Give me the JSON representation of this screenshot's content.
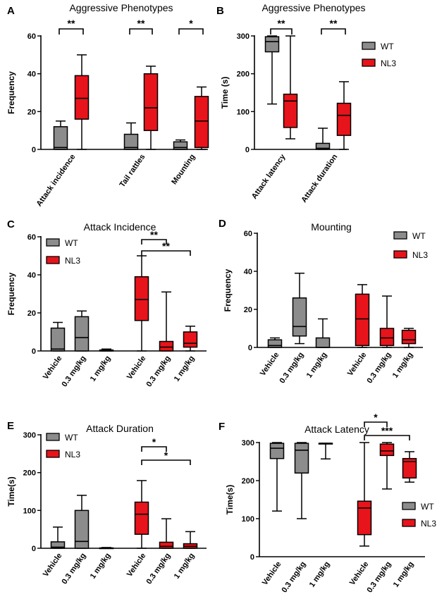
{
  "colors": {
    "WT": "#8c8c8c",
    "NL3": "#e8141b",
    "ink": "#000000"
  },
  "chart_data": [
    {
      "panel": "A",
      "type": "boxplot",
      "title": "Aggressive Phenotypes",
      "ylabel": "Frequency",
      "ylim": [
        0,
        60
      ],
      "yticks": [
        0,
        20,
        40,
        60
      ],
      "categories": [
        "Attack incidence",
        "Tail rattles",
        "Mounting"
      ],
      "legend": [],
      "groups": [
        {
          "category": "Attack incidence",
          "boxes": [
            {
              "series": "WT",
              "min": 0,
              "q1": 0,
              "median": 1,
              "q3": 12,
              "max": 15
            },
            {
              "series": "NL3",
              "min": 0,
              "q1": 16,
              "median": 27,
              "q3": 39,
              "max": 50
            }
          ]
        },
        {
          "category": "Tail rattles",
          "boxes": [
            {
              "series": "WT",
              "min": 0,
              "q1": 0,
              "median": 1,
              "q3": 8,
              "max": 14
            },
            {
              "series": "NL3",
              "min": 0,
              "q1": 10,
              "median": 22,
              "q3": 40,
              "max": 44
            }
          ]
        },
        {
          "category": "Mounting",
          "boxes": [
            {
              "series": "WT",
              "min": 0,
              "q1": 0,
              "median": 1,
              "q3": 4,
              "max": 5
            },
            {
              "series": "NL3",
              "min": 0,
              "q1": 1,
              "median": 15,
              "q3": 28,
              "max": 33
            }
          ]
        }
      ],
      "significance": [
        {
          "from": "Attack incidence WT",
          "to": "Attack incidence NL3",
          "label": "**"
        },
        {
          "from": "Tail rattles WT",
          "to": "Tail rattles NL3",
          "label": "**"
        },
        {
          "from": "Mounting WT",
          "to": "Mounting NL3",
          "label": "*"
        }
      ]
    },
    {
      "panel": "B",
      "type": "boxplot",
      "title": "Aggressive Phenotypes",
      "ylabel": "Time (s)",
      "ylim": [
        0,
        300
      ],
      "yticks": [
        0,
        100,
        200,
        300
      ],
      "categories": [
        "Attack latency",
        "Attack duration"
      ],
      "legend": [
        "WT",
        "NL3"
      ],
      "groups": [
        {
          "category": "Attack latency",
          "boxes": [
            {
              "series": "WT",
              "min": 120,
              "q1": 258,
              "median": 285,
              "q3": 298,
              "max": 300
            },
            {
              "series": "NL3",
              "min": 28,
              "q1": 58,
              "median": 128,
              "q3": 146,
              "max": 300
            }
          ]
        },
        {
          "category": "Attack duration",
          "boxes": [
            {
              "series": "WT",
              "min": 0,
              "q1": 0,
              "median": 3,
              "q3": 16,
              "max": 56
            },
            {
              "series": "NL3",
              "min": 0,
              "q1": 37,
              "median": 90,
              "q3": 122,
              "max": 179
            }
          ]
        }
      ],
      "significance": [
        {
          "from": "Attack latency WT",
          "to": "Attack latency NL3",
          "label": "**"
        },
        {
          "from": "Attack duration WT",
          "to": "Attack duration NL3",
          "label": "**"
        }
      ]
    },
    {
      "panel": "C",
      "type": "boxplot",
      "title": "Attack Incidence",
      "ylabel": "Frequency",
      "ylim": [
        0,
        60
      ],
      "yticks": [
        0,
        20,
        40,
        60
      ],
      "categories": [
        "Vehicle",
        "0.3 mg/kg",
        "1 mg/kg",
        "Vehicle",
        "0.3 mg/kg",
        "1 mg/kg"
      ],
      "legend": [
        "WT",
        "NL3"
      ],
      "boxes": [
        {
          "series": "WT",
          "min": 0,
          "q1": 0,
          "median": 1,
          "q3": 12,
          "max": 15
        },
        {
          "series": "WT",
          "min": 0,
          "q1": 0,
          "median": 7,
          "q3": 18,
          "max": 21
        },
        {
          "series": "WT",
          "min": 0,
          "q1": 0,
          "median": 0,
          "q3": 0.5,
          "max": 1
        },
        {
          "series": "NL3",
          "min": 0,
          "q1": 16,
          "median": 27,
          "q3": 39,
          "max": 50
        },
        {
          "series": "NL3",
          "min": 0,
          "q1": 0,
          "median": 2,
          "q3": 5,
          "max": 31
        },
        {
          "series": "NL3",
          "min": 0,
          "q1": 2,
          "median": 4,
          "q3": 10,
          "max": 13
        }
      ],
      "significance": [
        {
          "from": "NL3 Vehicle",
          "to": "NL3 0.3 mg/kg",
          "label": "**"
        },
        {
          "from": "NL3 Vehicle",
          "to": "NL3 1 mg/kg",
          "label": "**"
        }
      ]
    },
    {
      "panel": "D",
      "type": "boxplot",
      "title": "Mounting",
      "ylabel": "Frequency",
      "ylim": [
        0,
        60
      ],
      "yticks": [
        0,
        20,
        40,
        60
      ],
      "categories": [
        "Vehicle",
        "0.3 mg/kg",
        "1 mg/kg",
        "Vehicle",
        "0.3 mg/kg",
        "1 mg/kg"
      ],
      "legend": [
        "WT",
        "NL3"
      ],
      "boxes": [
        {
          "series": "WT",
          "min": 0,
          "q1": 0,
          "median": 1,
          "q3": 4,
          "max": 5
        },
        {
          "series": "WT",
          "min": 2,
          "q1": 6,
          "median": 11,
          "q3": 26,
          "max": 39
        },
        {
          "series": "WT",
          "min": 0,
          "q1": 0,
          "median": 0,
          "q3": 5,
          "max": 15
        },
        {
          "series": "NL3",
          "min": 0,
          "q1": 1,
          "median": 15,
          "q3": 28,
          "max": 33
        },
        {
          "series": "NL3",
          "min": 0,
          "q1": 1,
          "median": 5,
          "q3": 10,
          "max": 27
        },
        {
          "series": "NL3",
          "min": 0,
          "q1": 2,
          "median": 4,
          "q3": 9,
          "max": 10
        }
      ],
      "significance": []
    },
    {
      "panel": "E",
      "type": "boxplot",
      "title": "Attack Duration",
      "ylabel": "Time(s)",
      "ylim": [
        0,
        300
      ],
      "yticks": [
        0,
        100,
        200,
        300
      ],
      "categories": [
        "Vehicle",
        "0.3 mg/kg",
        "1 mg/kg",
        "Vehicle",
        "0.3 mg/kg",
        "1 mg/kg"
      ],
      "legend": [
        "WT",
        "NL3"
      ],
      "boxes": [
        {
          "series": "WT",
          "min": 0,
          "q1": 0,
          "median": 3,
          "q3": 17,
          "max": 56
        },
        {
          "series": "WT",
          "min": 0,
          "q1": 0,
          "median": 18,
          "q3": 100,
          "max": 140
        },
        {
          "series": "WT",
          "min": 0,
          "q1": 0,
          "median": 0,
          "q3": 1,
          "max": 2
        },
        {
          "series": "NL3",
          "min": 0,
          "q1": 37,
          "median": 90,
          "q3": 122,
          "max": 179
        },
        {
          "series": "NL3",
          "min": 0,
          "q1": 0,
          "median": 5,
          "q3": 16,
          "max": 78
        },
        {
          "series": "NL3",
          "min": 0,
          "q1": 0,
          "median": 5,
          "q3": 12,
          "max": 44
        }
      ],
      "significance": [
        {
          "from": "NL3 Vehicle",
          "to": "NL3 0.3 mg/kg",
          "label": "*"
        },
        {
          "from": "NL3 Vehicle",
          "to": "NL3 1 mg/kg",
          "label": "*"
        }
      ]
    },
    {
      "panel": "F",
      "type": "boxplot",
      "title": "Attack Latency",
      "ylabel": "Time(s)",
      "ylim": [
        0,
        300
      ],
      "yticks": [
        0,
        100,
        200,
        300
      ],
      "categories": [
        "Vehicle",
        "0.3 mg/kg",
        "1 mg/kg",
        "Vehicle",
        "0.3 mg/kg",
        "1 mg/kg"
      ],
      "legend": [
        "WT",
        "NL3"
      ],
      "boxes": [
        {
          "series": "WT",
          "min": 120,
          "q1": 258,
          "median": 285,
          "q3": 298,
          "max": 300
        },
        {
          "series": "WT",
          "min": 100,
          "q1": 220,
          "median": 280,
          "q3": 298,
          "max": 300
        },
        {
          "series": "WT",
          "min": 257,
          "q1": 298,
          "median": 298,
          "q3": 298,
          "max": 298
        },
        {
          "series": "NL3",
          "min": 28,
          "q1": 58,
          "median": 128,
          "q3": 146,
          "max": 300
        },
        {
          "series": "NL3",
          "min": 178,
          "q1": 266,
          "median": 278,
          "q3": 296,
          "max": 300
        },
        {
          "series": "NL3",
          "min": 196,
          "q1": 207,
          "median": 250,
          "q3": 258,
          "max": 276
        }
      ],
      "significance": [
        {
          "from": "NL3 Vehicle",
          "to": "NL3 0.3 mg/kg",
          "label": "*"
        },
        {
          "from": "NL3 Vehicle",
          "to": "NL3 1 mg/kg",
          "label": "***"
        }
      ]
    }
  ]
}
